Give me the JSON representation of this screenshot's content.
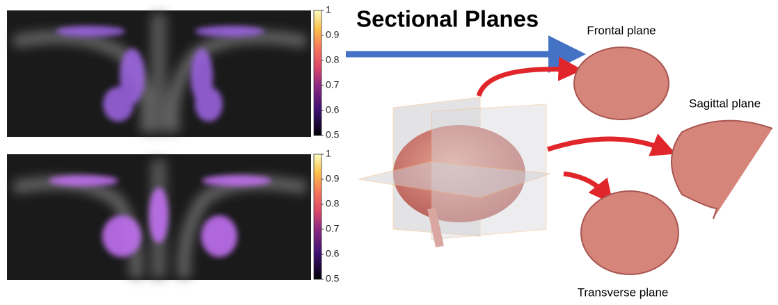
{
  "panels": [
    {
      "colorbar": {
        "lim": [
          0.5,
          1
        ],
        "ticks": [
          0.5,
          0.6,
          0.7,
          0.8,
          0.9,
          1
        ]
      }
    },
    {
      "colorbar": {
        "lim": [
          0.5,
          1
        ],
        "ticks": [
          0.5,
          0.6,
          0.7,
          0.8,
          0.9,
          1
        ]
      }
    }
  ],
  "illustration": {
    "title": "Sectional Planes",
    "frontal": "Frontal plane",
    "sagittal": "Sagittal plane",
    "transverse": "Transverse plane"
  }
}
